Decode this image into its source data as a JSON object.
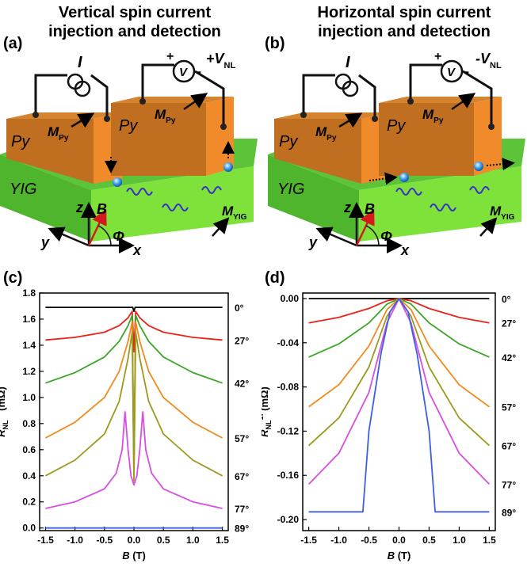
{
  "titles": {
    "left_line1": "Vertical spin current",
    "left_line2": "injection and detection",
    "right_line1": "Horizontal spin current",
    "right_line2": "injection and detection"
  },
  "panel_labels": {
    "a": "(a)",
    "b": "(b)",
    "c": "(c)",
    "d": "(d)"
  },
  "schematic": {
    "current_symbol": "I",
    "voltmeter_symbol": "V",
    "plus": "+",
    "minus": "-",
    "vnl_a": "+V",
    "vnl_b": "-V",
    "vnl_sub": "NL",
    "py": "Py",
    "m": "M",
    "m_py_sub": "Py",
    "m_yig_sub": "YIG",
    "yig": "YIG",
    "axis_z": "z",
    "axis_y": "y",
    "axis_x": "x",
    "field": "B",
    "angle": "Φ",
    "colors": {
      "py_top": "#cf7a26",
      "py_front": "#b86a1d",
      "py_side": "#e8862a",
      "yig_front": "#4fc22c",
      "yig_top": "#61c93c",
      "yig_right": "#7bea36"
    }
  },
  "chart_data": [
    {
      "type": "line",
      "panel": "(c)",
      "xlabel": "B (T)",
      "ylabel_main": "R",
      "ylabel_sub": "NL",
      "ylabel_sup": "1f",
      "ylabel_unit": "(mΩ)",
      "xlim": [
        -1.6,
        1.6
      ],
      "ylim": [
        -0.02,
        1.8
      ],
      "xticks": [
        "-1.5",
        "-1.0",
        "-0.5",
        "0.0",
        "0.5",
        "1.0",
        "1.5"
      ],
      "yticks": [
        "0.0",
        "0.2",
        "0.4",
        "0.6",
        "0.8",
        "1.0",
        "1.2",
        "1.4",
        "1.6",
        "1.8"
      ],
      "series": [
        {
          "name": "0°",
          "color": "#000000",
          "x": [
            -1.5,
            -0.02,
            0.0,
            0.02,
            1.5
          ],
          "y": [
            1.69,
            1.69,
            1.66,
            1.69,
            1.69
          ]
        },
        {
          "name": "27°",
          "color": "#e8231a",
          "x": [
            -1.5,
            -1.0,
            -0.5,
            -0.25,
            -0.1,
            -0.03,
            0.0,
            0.03,
            0.1,
            0.25,
            0.5,
            1.0,
            1.5
          ],
          "y": [
            1.44,
            1.46,
            1.5,
            1.55,
            1.61,
            1.66,
            1.35,
            1.66,
            1.61,
            1.55,
            1.5,
            1.46,
            1.44
          ]
        },
        {
          "name": "42°",
          "color": "#3da62a",
          "x": [
            -1.5,
            -1.0,
            -0.5,
            -0.25,
            -0.1,
            -0.03,
            0.0,
            0.03,
            0.1,
            0.25,
            0.5,
            1.0,
            1.5
          ],
          "y": [
            1.11,
            1.19,
            1.31,
            1.43,
            1.55,
            1.63,
            0.5,
            1.63,
            1.55,
            1.43,
            1.31,
            1.19,
            1.11
          ]
        },
        {
          "name": "57°",
          "color": "#f08a1d",
          "x": [
            -1.5,
            -1.0,
            -0.5,
            -0.25,
            -0.1,
            -0.03,
            0.0,
            0.03,
            0.1,
            0.25,
            0.5,
            1.0,
            1.5
          ],
          "y": [
            0.69,
            0.81,
            1.0,
            1.2,
            1.43,
            1.58,
            0.4,
            1.58,
            1.43,
            1.2,
            1.0,
            0.81,
            0.69
          ]
        },
        {
          "name": "67°",
          "color": "#9a9a1e",
          "x": [
            -1.5,
            -1.0,
            -0.5,
            -0.25,
            -0.1,
            -0.03,
            0.0,
            0.03,
            0.1,
            0.25,
            0.5,
            1.0,
            1.5
          ],
          "y": [
            0.4,
            0.52,
            0.72,
            0.97,
            1.3,
            1.5,
            0.36,
            1.5,
            1.3,
            0.97,
            0.72,
            0.52,
            0.4
          ]
        },
        {
          "name": "77°",
          "color": "#d84ee0",
          "x": [
            -1.5,
            -1.0,
            -0.5,
            -0.3,
            -0.2,
            -0.15,
            -0.1,
            -0.05,
            0.0,
            0.05,
            0.1,
            0.15,
            0.2,
            0.3,
            0.5,
            1.0,
            1.5
          ],
          "y": [
            0.15,
            0.2,
            0.3,
            0.42,
            0.6,
            0.89,
            0.6,
            0.4,
            0.33,
            0.4,
            0.6,
            0.89,
            0.6,
            0.42,
            0.3,
            0.2,
            0.15
          ]
        },
        {
          "name": "89°",
          "color": "#3d5fe0",
          "x": [
            -1.5,
            1.5
          ],
          "y": [
            0.0,
            0.0
          ]
        }
      ]
    },
    {
      "type": "line",
      "panel": "(d)",
      "xlabel": "B (T)",
      "ylabel_main": "R",
      "ylabel_sub": "NL",
      "ylabel_sup": "1f",
      "ylabel_unit": "(mΩ)",
      "xlim": [
        -1.6,
        1.6
      ],
      "ylim": [
        -0.21,
        0.005
      ],
      "xticks": [
        "-1.5",
        "-1.0",
        "-0.5",
        "0.0",
        "0.5",
        "1.0",
        "1.5"
      ],
      "yticks": [
        "0.00",
        "-0.04",
        "-0.08",
        "-0.12",
        "-0.16",
        "-0.20"
      ],
      "series": [
        {
          "name": "0°",
          "color": "#000000",
          "x": [
            -1.5,
            1.5
          ],
          "y": [
            0.0,
            0.0
          ]
        },
        {
          "name": "27°",
          "color": "#e8231a",
          "x": [
            -1.5,
            -1.0,
            -0.5,
            -0.2,
            0.0,
            0.2,
            0.5,
            1.0,
            1.5
          ],
          "y": [
            -0.022,
            -0.017,
            -0.009,
            -0.002,
            0.0,
            -0.002,
            -0.009,
            -0.017,
            -0.022
          ]
        },
        {
          "name": "42°",
          "color": "#3da62a",
          "x": [
            -1.5,
            -1.0,
            -0.5,
            -0.2,
            0.0,
            0.2,
            0.5,
            1.0,
            1.5
          ],
          "y": [
            -0.053,
            -0.041,
            -0.022,
            -0.005,
            0.0,
            -0.005,
            -0.022,
            -0.041,
            -0.053
          ]
        },
        {
          "name": "57°",
          "color": "#f08a1d",
          "x": [
            -1.5,
            -1.0,
            -0.5,
            -0.2,
            0.0,
            0.2,
            0.5,
            1.0,
            1.5
          ],
          "y": [
            -0.098,
            -0.078,
            -0.043,
            -0.01,
            0.0,
            -0.01,
            -0.043,
            -0.078,
            -0.098
          ]
        },
        {
          "name": "67°",
          "color": "#9a9a1e",
          "x": [
            -1.5,
            -1.0,
            -0.5,
            -0.2,
            0.0,
            0.2,
            0.5,
            1.0,
            1.5
          ],
          "y": [
            -0.133,
            -0.108,
            -0.062,
            -0.016,
            0.0,
            -0.016,
            -0.062,
            -0.108,
            -0.133
          ]
        },
        {
          "name": "77°",
          "color": "#d84ee0",
          "x": [
            -1.5,
            -1.0,
            -0.5,
            -0.2,
            0.0,
            0.2,
            0.5,
            1.0,
            1.5
          ],
          "y": [
            -0.168,
            -0.14,
            -0.085,
            -0.022,
            0.0,
            -0.022,
            -0.085,
            -0.14,
            -0.168
          ]
        },
        {
          "name": "89°",
          "color": "#3d5fe0",
          "x": [
            -1.5,
            -0.6,
            -0.5,
            -0.3,
            -0.15,
            0.0,
            0.15,
            0.3,
            0.5,
            0.6,
            1.5
          ],
          "y": [
            -0.193,
            -0.193,
            -0.12,
            -0.05,
            -0.012,
            0.0,
            -0.012,
            -0.05,
            -0.12,
            -0.193,
            -0.193
          ]
        }
      ]
    }
  ]
}
